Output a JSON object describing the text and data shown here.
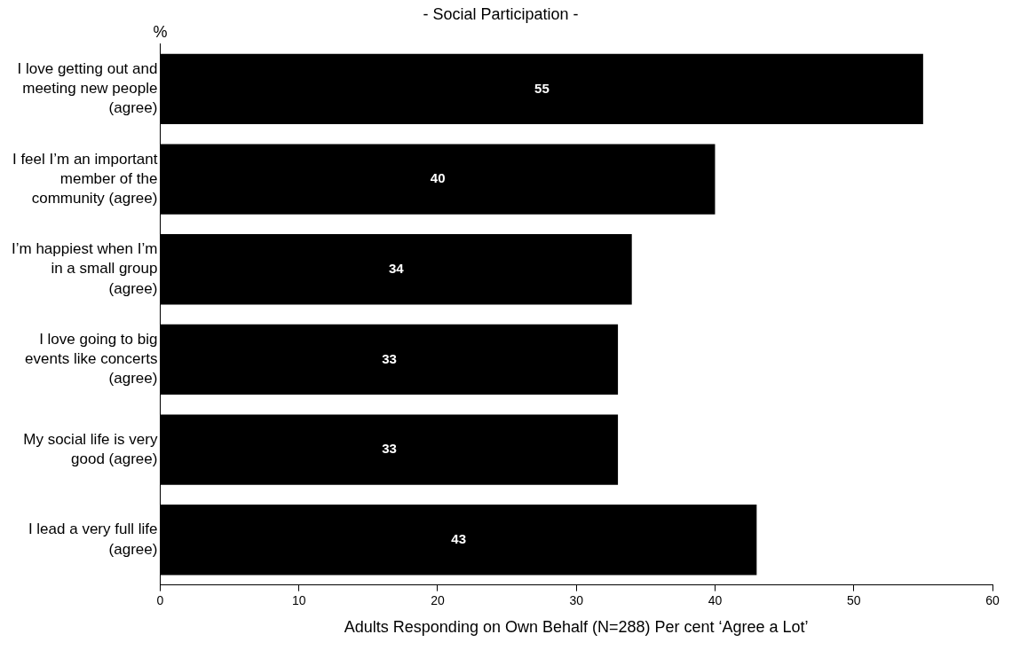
{
  "chart_data": {
    "type": "bar",
    "orientation": "horizontal",
    "title": "- Social Participation -",
    "xlabel": "Adults Responding on Own Behalf (N=288) Per cent ‘Agree a Lot’",
    "annotations": [
      "%"
    ],
    "categories": [
      "I love getting out and\nmeeting new people\n(agree)",
      "I feel I’m an important\nmember of the\ncommunity (agree)",
      "I’m happiest when I’m\nin a small group\n(agree)",
      "I love going to big\nevents like concerts\n(agree)",
      "My social life is very\ngood (agree)",
      "I lead a very full life\n(agree)"
    ],
    "values": [
      55,
      40,
      34,
      33,
      33,
      43
    ],
    "color": "#000000",
    "data_labels": true,
    "grid": false,
    "legend": false,
    "xlim": [
      0,
      60
    ],
    "xticks": [
      0,
      10,
      20,
      30,
      40,
      50,
      60
    ]
  }
}
